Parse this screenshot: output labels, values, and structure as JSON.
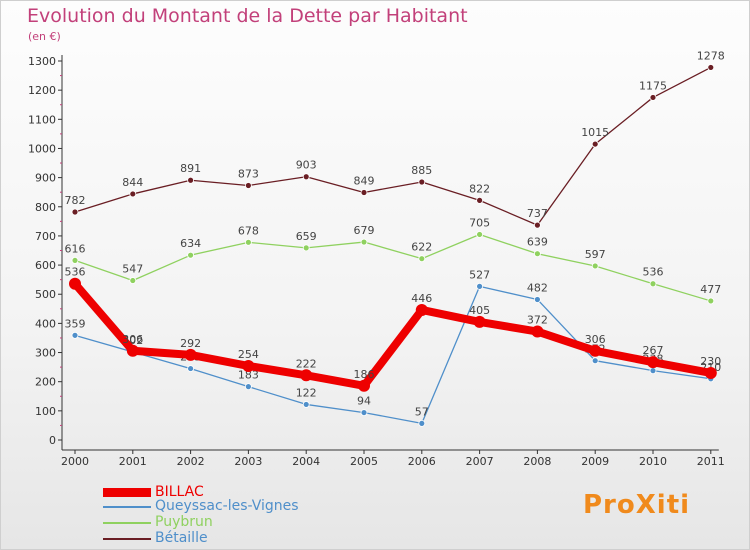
{
  "title": "Evolution du Montant de la Dette par Habitant",
  "unit_label": "(en €)",
  "logo_text": "ProXiti",
  "chart_data": {
    "type": "line",
    "categories": [
      "2000",
      "2001",
      "2002",
      "2003",
      "2004",
      "2005",
      "2006",
      "2007",
      "2008",
      "2009",
      "2010",
      "2011"
    ],
    "ylim": [
      0,
      1300
    ],
    "yticks": [
      0,
      100,
      200,
      300,
      400,
      500,
      600,
      700,
      800,
      900,
      1000,
      1100,
      1200,
      1300
    ],
    "grid": false,
    "legend_position": "bottom-left",
    "series": [
      {
        "name": "BILLAC",
        "color": "#ee0000",
        "values": [
          536,
          306,
          292,
          254,
          222,
          186,
          446,
          405,
          372,
          306,
          267,
          230
        ]
      },
      {
        "name": "Queyssac-les-Vignes",
        "color": "#4f8fca",
        "values": [
          359,
          302,
          245,
          183,
          122,
          94,
          57,
          527,
          482,
          272,
          238,
          210
        ]
      },
      {
        "name": "Puybrun",
        "color": "#8fd15f",
        "values": [
          616,
          547,
          634,
          678,
          659,
          679,
          622,
          705,
          639,
          597,
          536,
          477
        ]
      },
      {
        "name": "Bétaille",
        "color": "#6a1e24",
        "values": [
          782,
          844,
          891,
          873,
          903,
          849,
          885,
          822,
          737,
          1015,
          1175,
          1278
        ]
      }
    ]
  }
}
